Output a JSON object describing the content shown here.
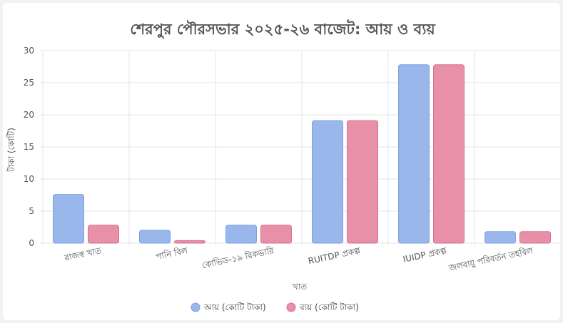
{
  "colors": {
    "income_fill": "#9ab7ec",
    "income_stroke": "#7aa0e4",
    "expense_fill": "#e890a8",
    "expense_stroke": "#d9708e",
    "grid": "#e4e4e4",
    "axis_text": "#555555",
    "title_text": "#555555"
  },
  "chart_data": {
    "type": "bar",
    "title": "শেরপুর পৌরসভার ২০২৫-২৬ বাজেট: আয় ও ব্যয়",
    "xlabel": "খাত",
    "ylabel": "টাকা (কোটি)",
    "ylim": [
      0,
      30
    ],
    "yticks": [
      0,
      5,
      10,
      15,
      20,
      25,
      30
    ],
    "grid": true,
    "legend_position": "bottom",
    "categories": [
      "রাজস্ব খাত",
      "পানি বিল",
      "কোভিড-১৯ রিকভারি",
      "RUITDP প্রকল্প",
      "IUIDP প্রকল্প",
      "জলবায়ু পরিবর্তন তহবিল"
    ],
    "series": [
      {
        "name": "আয় (কোটি টাকা)",
        "values": [
          7.6,
          2.0,
          2.8,
          19.1,
          27.8,
          1.8
        ]
      },
      {
        "name": "ব্যয় (কোটি টাকা)",
        "values": [
          2.8,
          0.4,
          2.8,
          19.1,
          27.8,
          1.8
        ]
      }
    ]
  }
}
